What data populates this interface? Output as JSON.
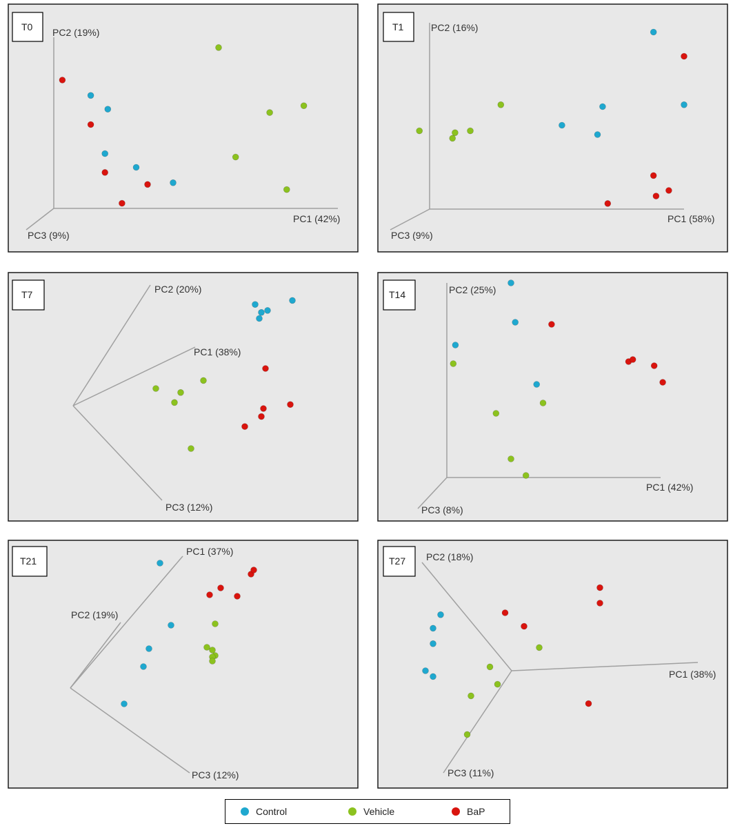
{
  "colors": {
    "Control": "#1fa8cf",
    "Vehicle": "#8cc21f",
    "BaP": "#d9140e",
    "panel_bg": "#e8e8e8",
    "axis": "#a0a0a0"
  },
  "legend": [
    {
      "name": "Control",
      "color": "#1fa8cf"
    },
    {
      "name": "Vehicle",
      "color": "#8cc21f"
    },
    {
      "name": "BaP",
      "color": "#d9140e"
    }
  ],
  "chart_data": [
    {
      "type": "scatter",
      "title": "T0",
      "axes": {
        "pc1": "PC1 (42%)",
        "pc2": "PC2 (19%)",
        "pc3": "PC3 (9%)"
      },
      "series": [
        {
          "name": "Control",
          "points": [
            [
              0.13,
              0.66
            ],
            [
              0.19,
              0.58
            ],
            [
              0.18,
              0.32
            ],
            [
              0.29,
              0.24
            ],
            [
              0.42,
              0.15
            ]
          ]
        },
        {
          "name": "Vehicle",
          "points": [
            [
              0.58,
              0.94
            ],
            [
              0.76,
              0.56
            ],
            [
              0.88,
              0.6
            ],
            [
              0.64,
              0.3
            ],
            [
              0.82,
              0.11
            ]
          ]
        },
        {
          "name": "BaP",
          "points": [
            [
              0.03,
              0.75
            ],
            [
              0.13,
              0.49
            ],
            [
              0.18,
              0.21
            ],
            [
              0.33,
              0.14
            ],
            [
              0.24,
              0.03
            ]
          ]
        }
      ]
    },
    {
      "type": "scatter",
      "title": "T1",
      "axes": {
        "pc1": "PC1 (58%)",
        "pc2": "PC2 (16%)",
        "pc3": "PC3 (9%)"
      },
      "series": [
        {
          "name": "Control",
          "points": [
            [
              0.88,
              0.95
            ],
            [
              0.52,
              0.45
            ],
            [
              0.68,
              0.55
            ],
            [
              0.66,
              0.4
            ],
            [
              1.0,
              0.56
            ]
          ]
        },
        {
          "name": "Vehicle",
          "points": [
            [
              -0.04,
              0.42
            ],
            [
              0.1,
              0.41
            ],
            [
              0.16,
              0.42
            ],
            [
              0.28,
              0.56
            ],
            [
              0.09,
              0.38
            ]
          ]
        },
        {
          "name": "BaP",
          "points": [
            [
              1.0,
              0.82
            ],
            [
              0.88,
              0.18
            ],
            [
              0.94,
              0.1
            ],
            [
              0.89,
              0.07
            ],
            [
              0.7,
              0.03
            ]
          ]
        }
      ]
    },
    {
      "type": "scatter",
      "title": "T7",
      "axes": {
        "pc1": "PC1 (38%)",
        "pc2": "PC2 (20%)",
        "pc3": "PC3 (12%)"
      },
      "series": [
        {
          "name": "Control",
          "points": [
            [
              0.88,
              0.92
            ],
            [
              0.91,
              0.88
            ],
            [
              0.94,
              0.89
            ],
            [
              0.9,
              0.85
            ],
            [
              1.06,
              0.94
            ]
          ]
        },
        {
          "name": "Vehicle",
          "points": [
            [
              0.4,
              0.5
            ],
            [
              0.52,
              0.48
            ],
            [
              0.49,
              0.43
            ],
            [
              0.63,
              0.54
            ],
            [
              0.57,
              0.2
            ]
          ]
        },
        {
          "name": "BaP",
          "points": [
            [
              0.93,
              0.6
            ],
            [
              0.92,
              0.4
            ],
            [
              0.83,
              0.31
            ],
            [
              1.05,
              0.42
            ],
            [
              0.91,
              0.36
            ]
          ]
        }
      ]
    },
    {
      "type": "scatter",
      "title": "T14",
      "axes": {
        "pc1": "PC1 (42%)",
        "pc2": "PC2 (25%)",
        "pc3": "PC3 (8%)"
      },
      "series": [
        {
          "name": "Control",
          "points": [
            [
              0.3,
              0.94
            ],
            [
              0.32,
              0.75
            ],
            [
              0.04,
              0.64
            ],
            [
              0.42,
              0.45
            ]
          ]
        },
        {
          "name": "Vehicle",
          "points": [
            [
              0.03,
              0.55
            ],
            [
              0.23,
              0.31
            ],
            [
              0.45,
              0.36
            ],
            [
              0.3,
              0.09
            ],
            [
              0.37,
              0.01
            ]
          ]
        },
        {
          "name": "BaP",
          "points": [
            [
              0.49,
              0.74
            ],
            [
              0.85,
              0.56
            ],
            [
              0.87,
              0.57
            ],
            [
              0.97,
              0.54
            ],
            [
              1.01,
              0.46
            ]
          ]
        }
      ]
    },
    {
      "type": "scatter",
      "title": "T21",
      "axes": {
        "pc1": "PC1 (37%)",
        "pc2": "PC2 (19%)",
        "pc3": "PC3 (12%)"
      },
      "series": [
        {
          "name": "Control",
          "points": [
            [
              0.58,
              0.92
            ],
            [
              0.62,
              0.47
            ],
            [
              0.54,
              0.3
            ],
            [
              0.52,
              0.17
            ],
            [
              0.45,
              -0.1
            ]
          ]
        },
        {
          "name": "Vehicle",
          "points": [
            [
              0.78,
              0.48
            ],
            [
              0.75,
              0.31
            ],
            [
              0.77,
              0.29
            ],
            [
              0.78,
              0.25
            ],
            [
              0.77,
              0.24
            ],
            [
              0.77,
              0.21
            ]
          ]
        },
        {
          "name": "BaP",
          "points": [
            [
              0.76,
              0.69
            ],
            [
              0.8,
              0.74
            ],
            [
              0.86,
              0.68
            ],
            [
              0.91,
              0.84
            ],
            [
              0.92,
              0.87
            ]
          ]
        }
      ]
    },
    {
      "type": "scatter",
      "title": "T27",
      "axes": {
        "pc1": "PC1 (38%)",
        "pc2": "PC2 (18%)",
        "pc3": "PC3 (11%)"
      },
      "series": [
        {
          "name": "Control",
          "points": [
            [
              -0.02,
              0.64
            ],
            [
              -0.04,
              0.57
            ],
            [
              -0.04,
              0.49
            ],
            [
              -0.06,
              0.35
            ],
            [
              -0.04,
              0.32
            ]
          ]
        },
        {
          "name": "Vehicle",
          "points": [
            [
              0.05,
              0.02
            ],
            [
              0.06,
              0.22
            ],
            [
              0.13,
              0.28
            ],
            [
              0.24,
              0.47
            ],
            [
              0.11,
              0.37
            ]
          ]
        },
        {
          "name": "BaP",
          "points": [
            [
              0.15,
              0.65
            ],
            [
              0.2,
              0.58
            ],
            [
              0.4,
              0.78
            ],
            [
              0.4,
              0.7
            ],
            [
              0.37,
              0.18
            ]
          ]
        }
      ]
    }
  ]
}
